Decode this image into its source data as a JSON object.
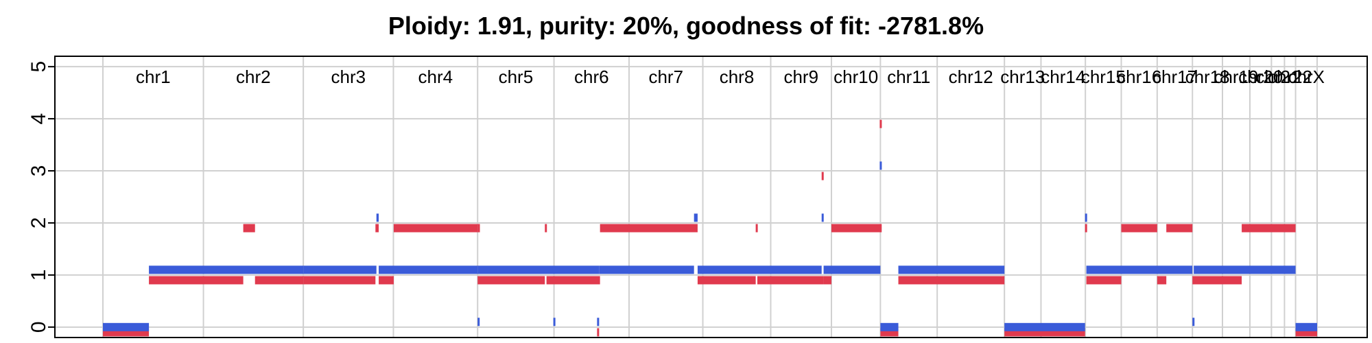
{
  "chart_data": {
    "type": "segment",
    "title": "Ploidy: 1.91, purity: 20%, goodness of fit: -2781.8%",
    "xlabel": "",
    "ylabel": "",
    "ylim": [
      -0.2,
      5.2
    ],
    "y_ticks": [
      0,
      1,
      2,
      3,
      4,
      5
    ],
    "x_range": [
      0,
      4200
    ],
    "grid": true,
    "colors": {
      "major": "#3a5bd9",
      "minor": "#e03a4e",
      "grid": "#d0d0d0",
      "axis": "#000000",
      "text": "#000000"
    },
    "chromosomes": [
      {
        "name": "chr1",
        "start": 0
      },
      {
        "name": "chr2",
        "start": 308
      },
      {
        "name": "chr3",
        "start": 614
      },
      {
        "name": "chr4",
        "start": 890
      },
      {
        "name": "chr5",
        "start": 1148
      },
      {
        "name": "chr6",
        "start": 1382
      },
      {
        "name": "chr7",
        "start": 1612
      },
      {
        "name": "chr8",
        "start": 1838
      },
      {
        "name": "chr9",
        "start": 2046
      },
      {
        "name": "chr10",
        "start": 2232
      },
      {
        "name": "chr11",
        "start": 2382
      },
      {
        "name": "chr12",
        "start": 2556
      },
      {
        "name": "chr13",
        "start": 2762
      },
      {
        "name": "chr14",
        "start": 2874
      },
      {
        "name": "chr15",
        "start": 3010
      },
      {
        "name": "chr16",
        "start": 3120
      },
      {
        "name": "chr17",
        "start": 3230
      },
      {
        "name": "chr18",
        "start": 3338
      },
      {
        "name": "chr19",
        "start": 3430
      },
      {
        "name": "chr20",
        "start": 3514
      },
      {
        "name": "chr21",
        "start": 3580
      },
      {
        "name": "chr22",
        "start": 3620
      },
      {
        "name": "chrX",
        "start": 3654
      }
    ],
    "chromosome_end": 3720,
    "series": [
      {
        "key": "major",
        "segments": [
          [
            0,
            141,
            0
          ],
          [
            141,
            614,
            1.1
          ],
          [
            614,
            838,
            1.1
          ],
          [
            838,
            845,
            2.1
          ],
          [
            845,
            1148,
            1.1
          ],
          [
            1148,
            1520,
            1.1
          ],
          [
            1148,
            1151,
            0.1
          ],
          [
            1380,
            1383,
            0.1
          ],
          [
            1514,
            1520,
            0.1
          ],
          [
            1520,
            1811,
            1.1
          ],
          [
            1811,
            1822,
            2.1
          ],
          [
            1822,
            2202,
            1.1
          ],
          [
            2202,
            2208,
            2.1
          ],
          [
            2208,
            2382,
            1.1
          ],
          [
            2380,
            2384,
            3.1
          ],
          [
            2382,
            2437,
            0
          ],
          [
            2437,
            2762,
            1.1
          ],
          [
            2762,
            3009,
            0
          ],
          [
            3009,
            3013,
            2.1
          ],
          [
            3013,
            3338,
            1.1
          ],
          [
            3338,
            3342,
            0.1
          ],
          [
            3342,
            3654,
            1.1
          ],
          [
            3654,
            3720,
            0
          ]
        ]
      },
      {
        "key": "minor",
        "segments": [
          [
            0,
            141,
            -0.1
          ],
          [
            141,
            430,
            0.9
          ],
          [
            430,
            466,
            1.9
          ],
          [
            466,
            614,
            0.9
          ],
          [
            614,
            835,
            0.9
          ],
          [
            835,
            845,
            1.9
          ],
          [
            845,
            891,
            0.9
          ],
          [
            891,
            1148,
            1.9
          ],
          [
            1148,
            1155,
            1.9
          ],
          [
            1148,
            1354,
            0.9
          ],
          [
            1354,
            1359,
            1.9
          ],
          [
            1359,
            1523,
            0.9
          ],
          [
            1514,
            1520,
            -0.1
          ],
          [
            1523,
            1822,
            1.9
          ],
          [
            1822,
            2000,
            0.9
          ],
          [
            2000,
            2005,
            1.9
          ],
          [
            2005,
            2208,
            0.9
          ],
          [
            2202,
            2208,
            2.9
          ],
          [
            2208,
            2232,
            0.9
          ],
          [
            2232,
            2386,
            1.9
          ],
          [
            2380,
            2384,
            3.9
          ],
          [
            2382,
            2437,
            -0.1
          ],
          [
            2437,
            2762,
            0.9
          ],
          [
            2762,
            3009,
            -0.1
          ],
          [
            3009,
            3013,
            1.9
          ],
          [
            3013,
            3120,
            0.9
          ],
          [
            3120,
            3230,
            1.9
          ],
          [
            3230,
            3258,
            0.9
          ],
          [
            3258,
            3338,
            1.9
          ],
          [
            3338,
            3489,
            0.9
          ],
          [
            3489,
            3654,
            1.9
          ],
          [
            3654,
            3720,
            -0.1
          ]
        ]
      }
    ]
  }
}
